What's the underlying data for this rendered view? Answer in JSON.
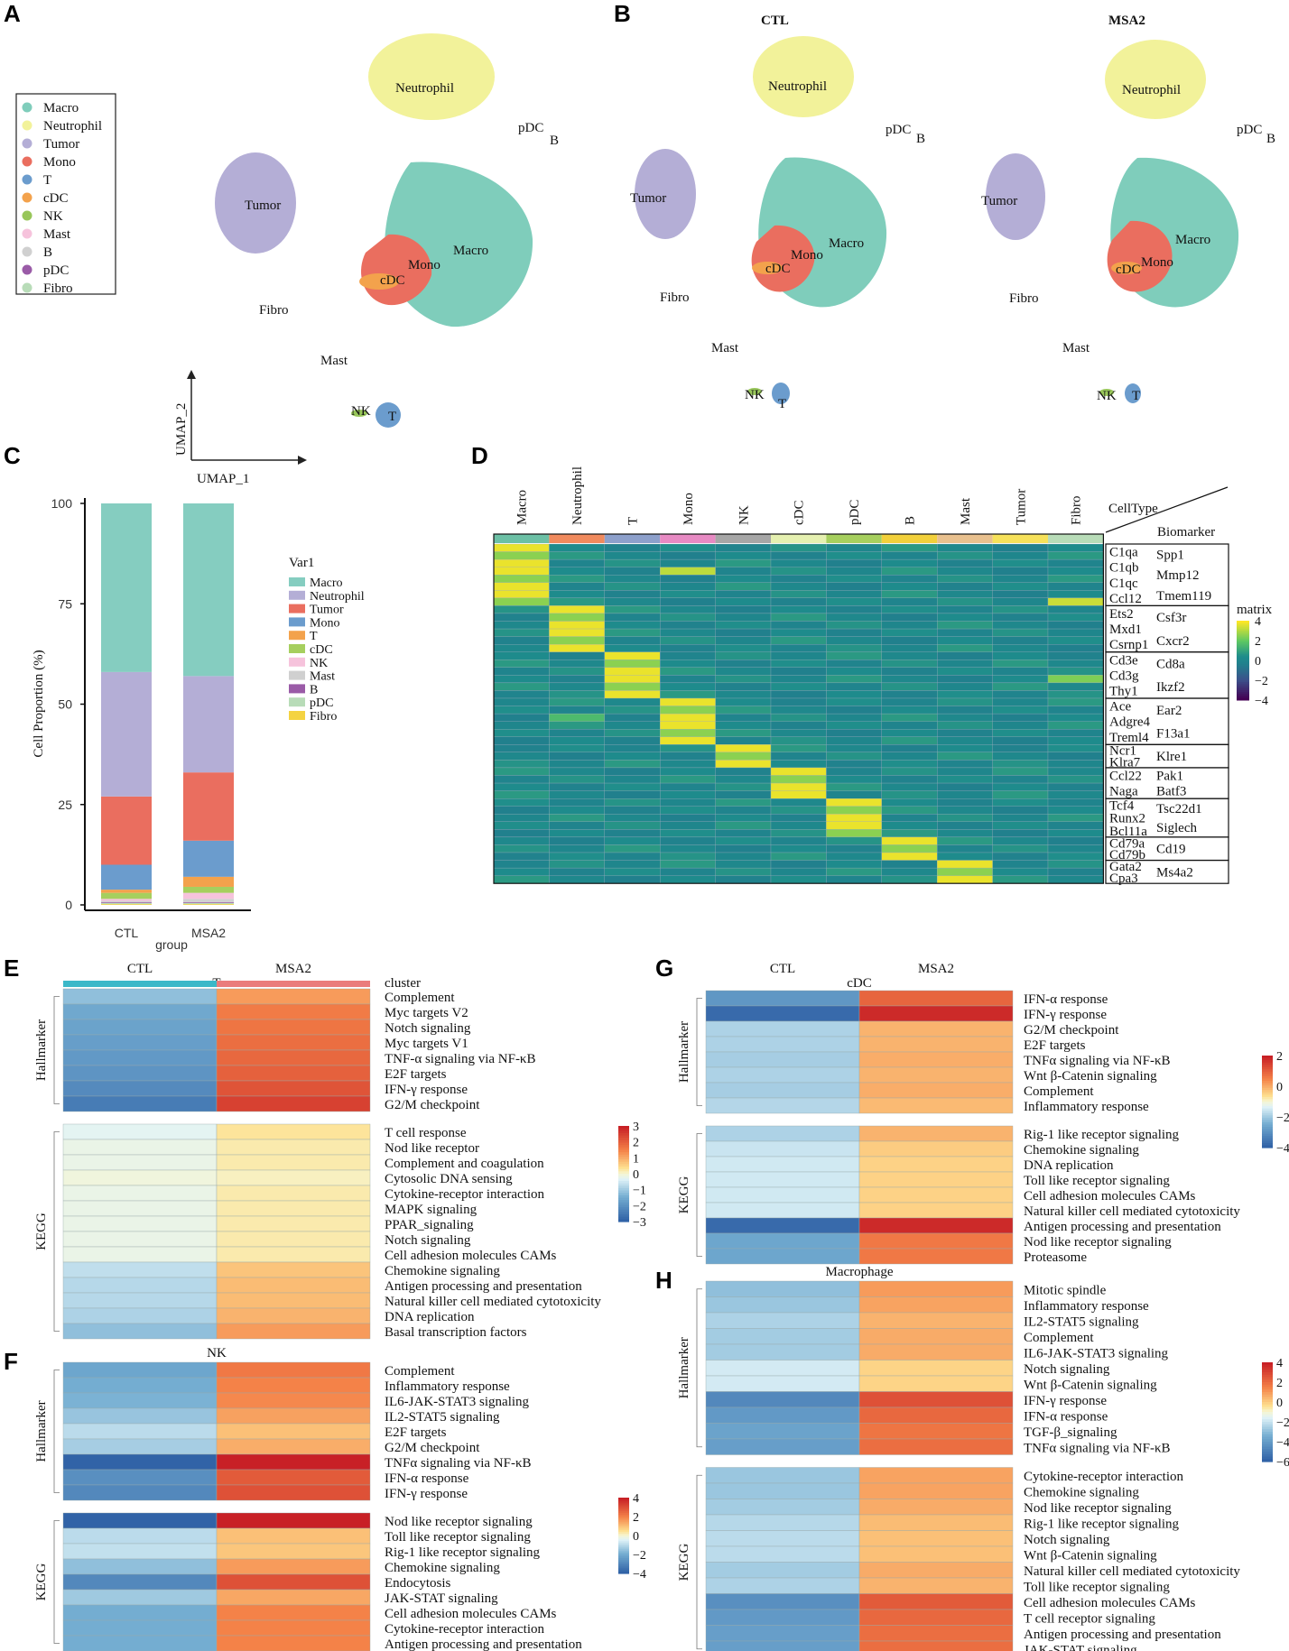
{
  "panel_labels": {
    "A": "A",
    "B": "B",
    "C": "C",
    "D": "D",
    "E": "E",
    "F": "F",
    "G": "G",
    "H": "H"
  },
  "colors": {
    "Macro": "#7fcdbb",
    "Neutrophil": "#f2f29a",
    "Tumor": "#b4aed6",
    "Mono": "#ea6e5f",
    "T": "#6b9ccd",
    "cDC": "#f3a24c",
    "NK": "#98c65a",
    "Mast": "#f6c3dc",
    "B": "#d0d0d0",
    "pDC": "#9a5ba7",
    "Fibro": "#b8dcb8"
  },
  "panel_a": {
    "legend": [
      "Macro",
      "Neutrophil",
      "Tumor",
      "Mono",
      "T",
      "cDC",
      "NK",
      "Mast",
      "B",
      "pDC",
      "Fibro"
    ],
    "cluster_labels": [
      "Neutrophil",
      "pDC",
      "B",
      "Tumor",
      "Macro",
      "Mono",
      "cDC",
      "Fibro",
      "Mast",
      "NK",
      "T"
    ],
    "axis_x": "UMAP_1",
    "axis_y": "UMAP_2"
  },
  "panel_b": {
    "titles": [
      "CTL",
      "MSA2"
    ],
    "cluster_labels": [
      "Neutrophil",
      "pDC",
      "B",
      "Tumor",
      "Macro",
      "Mono",
      "cDC",
      "Fibro",
      "Mast",
      "NK",
      "T"
    ]
  },
  "chart_data": [
    {
      "id": "panel-c",
      "type": "bar",
      "stacked": true,
      "categories": [
        "CTL",
        "MSA2"
      ],
      "xlabel": "group",
      "ylabel": "Cell Proportion (%)",
      "ylim": [
        0,
        100
      ],
      "yticks": [
        "0",
        "25",
        "50",
        "75",
        "100"
      ],
      "legend_title": "Var1",
      "legend": [
        "Macro",
        "Neutrophil",
        "Tumor",
        "Mono",
        "T",
        "cDC",
        "NK",
        "Mast",
        "B",
        "pDC",
        "Fibro"
      ],
      "stack_order_from_bottom": [
        "Fibro",
        "pDC",
        "B",
        "Mast",
        "NK",
        "cDC",
        "T",
        "Mono",
        "Tumor",
        "Neutrophil",
        "Macro"
      ],
      "series": [
        {
          "name": "Fibro",
          "color": "#f4d341",
          "values": [
            0.2,
            0.2
          ]
        },
        {
          "name": "pDC",
          "color": "#b8dcb8",
          "values": [
            0.3,
            0.3
          ]
        },
        {
          "name": "B",
          "color": "#9a5ba7",
          "values": [
            0.2,
            0.2
          ]
        },
        {
          "name": "Mast",
          "color": "#d0d0d0",
          "values": [
            0.3,
            0.8
          ]
        },
        {
          "name": "NK",
          "color": "#f6c3dc",
          "values": [
            0.5,
            1.5
          ]
        },
        {
          "name": "cDC",
          "color": "#a6cf5e",
          "values": [
            1.5,
            1.5
          ]
        },
        {
          "name": "T",
          "color": "#f3a24c",
          "values": [
            0.8,
            2.5
          ]
        },
        {
          "name": "Mono",
          "color": "#6b9ccd",
          "values": [
            6.2,
            9.0
          ]
        },
        {
          "name": "Tumor",
          "color": "#ea6e5f",
          "values": [
            17,
            17
          ]
        },
        {
          "name": "Neutrophil",
          "color": "#b4aed6",
          "values": [
            31,
            24
          ]
        },
        {
          "name": "Macro",
          "color": "#85cdc0",
          "values": [
            42,
            43
          ]
        }
      ]
    },
    {
      "id": "panel-d",
      "type": "heatmap",
      "columns": [
        "Macro",
        "Neutrophil",
        "T",
        "Mono",
        "NK",
        "cDC",
        "pDC",
        "B",
        "Mast",
        "Tumor",
        "Fibro"
      ],
      "column_colors": [
        "#6cc0a5",
        "#f08a5d",
        "#8da0cb",
        "#e78ac3",
        "#a6a6a6",
        "#e5f0b0",
        "#a6cf5e",
        "#f2d03b",
        "#e8c08e",
        "#f6e15a",
        "#b8dcb8"
      ],
      "corner_labels": [
        "CellType",
        "Biomarker"
      ],
      "colorbar_title": "matrix",
      "colorbar_ticks": [
        "4",
        "2",
        "0",
        "−2",
        "−4"
      ],
      "groups": [
        {
          "genes_left": [
            "C1qa",
            "C1qb",
            "C1qc",
            "Ccl12"
          ],
          "genes_right": [
            "Spp1",
            "Mmp12",
            "Tmem119"
          ],
          "rows": 8
        },
        {
          "genes_left": [
            "Ets2",
            "Mxd1",
            "Csrnp1"
          ],
          "genes_right": [
            "Csf3r",
            "Cxcr2"
          ],
          "rows": 6
        },
        {
          "genes_left": [
            "Cd3e",
            "Cd3g",
            "Thy1"
          ],
          "genes_right": [
            "Cd8a",
            "Ikzf2"
          ],
          "rows": 6
        },
        {
          "genes_left": [
            "Ace",
            "Adgre4",
            "Treml4"
          ],
          "genes_right": [
            "Ear2",
            "F13a1"
          ],
          "rows": 6
        },
        {
          "genes_left": [
            "Ncr1",
            "Klra7"
          ],
          "genes_right": [
            "Klre1"
          ],
          "rows": 3
        },
        {
          "genes_left": [
            "Ccl22",
            "Naga"
          ],
          "genes_right": [
            "Pak1",
            "Batf3"
          ],
          "rows": 4
        },
        {
          "genes_left": [
            "Tcf4",
            "Runx2",
            "Bcl11a"
          ],
          "genes_right": [
            "Tsc22d1",
            "Siglech"
          ],
          "rows": 5
        },
        {
          "genes_left": [
            "Cd79a",
            "Cd79b"
          ],
          "genes_right": [
            "Cd19"
          ],
          "rows": 3
        },
        {
          "genes_left": [
            "Gata2",
            "Cpa3"
          ],
          "genes_right": [
            "Ms4a2"
          ],
          "rows": 3
        }
      ]
    },
    {
      "id": "panel-e",
      "type": "heatmap",
      "title": "T",
      "columns": [
        "CTL",
        "MSA2"
      ],
      "annotation_label": "cluster",
      "colorbar_ticks": [
        "3",
        "2",
        "1",
        "0",
        "−1",
        "−2",
        "−3"
      ],
      "hallmarker_label": "Hallmarker",
      "kegg_label": "KEGG",
      "hallmarker": [
        {
          "term": "Complement",
          "values": [
            -1.2,
            1.2
          ]
        },
        {
          "term": "Myc targets V2",
          "values": [
            -1.6,
            1.6
          ]
        },
        {
          "term": "Notch signaling",
          "values": [
            -1.7,
            1.7
          ]
        },
        {
          "term": "Myc targets V1",
          "values": [
            -1.8,
            1.8
          ]
        },
        {
          "term": "TNF-α signaling via NF-κB",
          "values": [
            -1.9,
            1.9
          ]
        },
        {
          "term": "E2F targets",
          "values": [
            -2.0,
            2.0
          ]
        },
        {
          "term": "IFN-γ response",
          "values": [
            -2.2,
            2.2
          ]
        },
        {
          "term": "G2/M checkpoint",
          "values": [
            -2.5,
            2.5
          ]
        }
      ],
      "kegg": [
        {
          "term": "T cell response",
          "values": [
            -0.3,
            0.3
          ]
        },
        {
          "term": "Nod like receptor",
          "values": [
            -0.2,
            0.2
          ]
        },
        {
          "term": "Complement and coagulation",
          "values": [
            -0.2,
            0.2
          ]
        },
        {
          "term": "Cytosolic DNA sensing",
          "values": [
            -0.1,
            0.1
          ]
        },
        {
          "term": "Cytokine-receptor interaction",
          "values": [
            -0.2,
            0.2
          ]
        },
        {
          "term": "MAPK signaling",
          "values": [
            -0.2,
            0.2
          ]
        },
        {
          "term": "PPAR_signaling",
          "values": [
            -0.2,
            0.2
          ]
        },
        {
          "term": "Notch signaling",
          "values": [
            -0.2,
            0.2
          ]
        },
        {
          "term": "Cell adhesion molecules CAMs",
          "values": [
            -0.2,
            0.2
          ]
        },
        {
          "term": "Chemokine signaling",
          "values": [
            -0.7,
            0.7
          ]
        },
        {
          "term": "Antigen processing and presentation",
          "values": [
            -0.8,
            0.8
          ]
        },
        {
          "term": "Natural killer cell mediated cytotoxicity",
          "values": [
            -0.8,
            0.8
          ]
        },
        {
          "term": "DNA replication",
          "values": [
            -0.9,
            0.9
          ]
        },
        {
          "term": "Basal transcription factors",
          "values": [
            -1.2,
            1.2
          ]
        }
      ]
    },
    {
      "id": "panel-f",
      "type": "heatmap",
      "title": "NK",
      "columns": [
        "CTL",
        "MSA2"
      ],
      "colorbar_ticks": [
        "4",
        "2",
        "0",
        "−2",
        "−4"
      ],
      "hallmarker_label": "Hallmarker",
      "kegg_label": "KEGG",
      "hallmarker": [
        {
          "term": "Complement",
          "values": [
            -2.2,
            2.2
          ]
        },
        {
          "term": "Inflammatory response",
          "values": [
            -2.0,
            2.0
          ]
        },
        {
          "term": "IL6-JAK-STAT3 signaling",
          "values": [
            -1.9,
            1.9
          ]
        },
        {
          "term": "IL2-STAT5 signaling",
          "values": [
            -1.5,
            1.5
          ]
        },
        {
          "term": "E2F targets",
          "values": [
            -1.0,
            1.0
          ]
        },
        {
          "term": "G2/M checkpoint",
          "values": [
            -1.3,
            1.3
          ]
        },
        {
          "term": "TNFα signaling via NF-κB",
          "values": [
            -4.2,
            4.2
          ]
        },
        {
          "term": "IFN-α response",
          "values": [
            -2.8,
            2.8
          ]
        },
        {
          "term": "IFN-γ response",
          "values": [
            -3.0,
            3.0
          ]
        }
      ],
      "kegg": [
        {
          "term": "Nod like receptor signaling",
          "values": [
            -4.0,
            4.0
          ]
        },
        {
          "term": "Toll like receptor signaling",
          "values": [
            -1.0,
            1.0
          ]
        },
        {
          "term": "Rig-1 like receptor signaling",
          "values": [
            -0.9,
            0.9
          ]
        },
        {
          "term": "Chemokine signaling",
          "values": [
            -1.6,
            1.6
          ]
        },
        {
          "term": "Endocytosis",
          "values": [
            -3.0,
            3.0
          ]
        },
        {
          "term": "JAK-STAT signaling",
          "values": [
            -1.4,
            1.4
          ]
        },
        {
          "term": "Cell adhesion molecules CAMs",
          "values": [
            -2.0,
            2.0
          ]
        },
        {
          "term": "Cytokine-receptor interaction",
          "values": [
            -2.0,
            2.0
          ]
        },
        {
          "term": "Antigen processing and presentation",
          "values": [
            -2.0,
            2.0
          ]
        }
      ]
    },
    {
      "id": "panel-g",
      "type": "heatmap",
      "title": "cDC",
      "columns": [
        "CTL",
        "MSA2"
      ],
      "colorbar_ticks": [
        "2",
        "0",
        "−2",
        "−4"
      ],
      "hallmarker_label": "Hallmarker",
      "kegg_label": "KEGG",
      "hallmarker": [
        {
          "term": "IFN-α response",
          "values": [
            -2.6,
            2.6
          ]
        },
        {
          "term": "IFN-γ response",
          "values": [
            -3.8,
            3.8
          ]
        },
        {
          "term": "G2/M checkpoint",
          "values": [
            -1.2,
            1.2
          ]
        },
        {
          "term": "E2F targets",
          "values": [
            -1.2,
            1.2
          ]
        },
        {
          "term": "TNFα signaling via NF-κB",
          "values": [
            -1.3,
            1.3
          ]
        },
        {
          "term": "Wnt β-Catenin signaling",
          "values": [
            -1.2,
            1.2
          ]
        },
        {
          "term": "Complement",
          "values": [
            -1.3,
            1.3
          ]
        },
        {
          "term": "Inflammatory response",
          "values": [
            -1.1,
            1.1
          ]
        }
      ],
      "kegg": [
        {
          "term": "Rig-1 like receptor signaling",
          "values": [
            -1.2,
            1.2
          ]
        },
        {
          "term": "Chemokine signaling",
          "values": [
            -0.8,
            0.8
          ]
        },
        {
          "term": "DNA replication",
          "values": [
            -0.7,
            0.7
          ]
        },
        {
          "term": "Toll like receptor signaling",
          "values": [
            -0.7,
            0.7
          ]
        },
        {
          "term": "Cell adhesion molecules CAMs",
          "values": [
            -0.7,
            0.7
          ]
        },
        {
          "term": "Natural killer cell mediated cytotoxicity",
          "values": [
            -0.7,
            0.7
          ]
        },
        {
          "term": "Antigen processing and presentation",
          "values": [
            -3.8,
            3.8
          ]
        },
        {
          "term": "Nod like receptor signaling",
          "values": [
            -2.2,
            2.2
          ]
        },
        {
          "term": "Proteasome",
          "values": [
            -2.2,
            2.2
          ]
        }
      ]
    },
    {
      "id": "panel-h",
      "type": "heatmap",
      "title": "Macrophage",
      "columns": [
        "CTL",
        "MSA2"
      ],
      "colorbar_ticks": [
        "4",
        "2",
        "0",
        "−2",
        "−4",
        "−6"
      ],
      "hallmarker_label": "Hallmarker",
      "kegg_label": "KEGG",
      "hallmarker": [
        {
          "term": "Mitotic spindle",
          "values": [
            -2.4,
            2.4
          ]
        },
        {
          "term": "Inflammatory response",
          "values": [
            -2.2,
            2.2
          ]
        },
        {
          "term": "IL2-STAT5 signaling",
          "values": [
            -1.8,
            1.8
          ]
        },
        {
          "term": "Complement",
          "values": [
            -2.0,
            2.0
          ]
        },
        {
          "term": "IL6-JAK-STAT3 signaling",
          "values": [
            -2.0,
            2.0
          ]
        },
        {
          "term": "Notch signaling",
          "values": [
            -1.0,
            1.0
          ]
        },
        {
          "term": "Wnt β-Catenin signaling",
          "values": [
            -1.0,
            1.0
          ]
        },
        {
          "term": "IFN-γ response",
          "values": [
            -4.5,
            4.5
          ]
        },
        {
          "term": "IFN-α response",
          "values": [
            -3.8,
            3.8
          ]
        },
        {
          "term": "TGF-β_signaling",
          "values": [
            -3.4,
            3.4
          ]
        },
        {
          "term": "TNFα signaling via NF-κB",
          "values": [
            -3.6,
            3.6
          ]
        }
      ],
      "kegg": [
        {
          "term": "Cytokine-receptor interaction",
          "values": [
            -2.2,
            2.2
          ]
        },
        {
          "term": "Chemokine signaling",
          "values": [
            -2.2,
            2.2
          ]
        },
        {
          "term": "Nod like receptor signaling",
          "values": [
            -2.0,
            2.0
          ]
        },
        {
          "term": "Rig-1 like receptor signaling",
          "values": [
            -1.6,
            1.6
          ]
        },
        {
          "term": "Notch signaling",
          "values": [
            -1.5,
            1.5
          ]
        },
        {
          "term": "Wnt β-Catenin signaling",
          "values": [
            -1.5,
            1.5
          ]
        },
        {
          "term": "Natural killer cell mediated cytotoxicity",
          "values": [
            -2.0,
            2.0
          ]
        },
        {
          "term": "Toll like receptor signaling",
          "values": [
            -1.8,
            1.8
          ]
        },
        {
          "term": "Cell adhesion molecules CAMs",
          "values": [
            -4.2,
            4.2
          ]
        },
        {
          "term": "T cell receptor signaling",
          "values": [
            -3.8,
            3.8
          ]
        },
        {
          "term": "Antigen processing and presentation",
          "values": [
            -3.6,
            3.6
          ]
        },
        {
          "term": "JAK-STAT signaling",
          "values": [
            -3.6,
            3.6
          ]
        }
      ]
    }
  ]
}
